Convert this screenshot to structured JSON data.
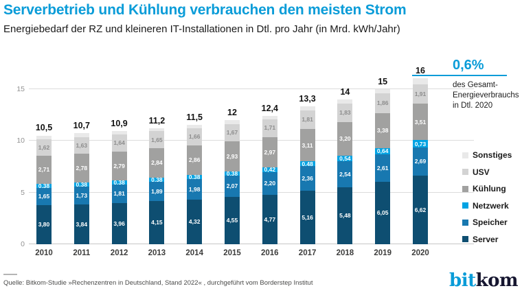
{
  "header": {
    "title": "Serverbetrieb und Kühlung verbrauchen den meisten Strom",
    "subtitle": "Energiebedarf der RZ und kleineren IT-Installationen in Dtl. pro Jahr (in Mrd. kWh/Jahr)"
  },
  "annotation": {
    "value": "0,6%",
    "description": "des Gesamt-\nEnergieverbrauchs\nin Dtl. 2020"
  },
  "colors": {
    "accent_blue": "#0a9cd8",
    "grid": "#dcdcdc",
    "axis": "#c6c6c5"
  },
  "chart_data": {
    "type": "bar",
    "stacked": true,
    "title": "Energiebedarf der RZ und kleineren IT-Installationen in Dtl. pro Jahr",
    "unit": "Mrd. kWh/Jahr",
    "categories": [
      "2010",
      "2011",
      "2012",
      "2013",
      "2014",
      "2015",
      "2016",
      "2017",
      "2018",
      "2019",
      "2020"
    ],
    "totals": [
      "10,5",
      "10,7",
      "10,9",
      "11,2",
      "11,5",
      "12",
      "12,4",
      "13,3",
      "14",
      "15",
      "16"
    ],
    "y_ticks": [
      0,
      5,
      10,
      15
    ],
    "ylim": [
      0,
      17.25
    ],
    "grid": true,
    "legend_position": "right",
    "series": [
      {
        "key": "server",
        "name": "Server",
        "color": "#0e4e71",
        "label_color": "#ffffff",
        "labels_shown": true,
        "values": [
          3.8,
          3.84,
          3.96,
          4.15,
          4.32,
          4.55,
          4.77,
          5.16,
          5.48,
          6.05,
          6.62
        ]
      },
      {
        "key": "speicher",
        "name": "Speicher",
        "color": "#1878b0",
        "label_color": "#ffffff",
        "labels_shown": true,
        "values": [
          1.65,
          1.73,
          1.81,
          1.89,
          1.98,
          2.07,
          2.2,
          2.36,
          2.54,
          2.61,
          2.69
        ]
      },
      {
        "key": "netzwerk",
        "name": "Netzwerk",
        "color": "#00a3e3",
        "label_color": "#ffffff",
        "labels_shown": true,
        "values": [
          0.38,
          0.38,
          0.38,
          0.38,
          0.38,
          0.38,
          0.42,
          0.48,
          0.54,
          0.64,
          0.73
        ]
      },
      {
        "key": "kuehlung",
        "name": "Kühlung",
        "color": "#a1a1a0",
        "label_color": "#ffffff",
        "labels_shown": true,
        "values": [
          2.71,
          2.78,
          2.79,
          2.84,
          2.86,
          2.93,
          2.97,
          3.11,
          3.2,
          3.38,
          3.51
        ]
      },
      {
        "key": "usv",
        "name": "USV",
        "color": "#d3d3d3",
        "label_color": "#8c8c8c",
        "labels_shown": true,
        "values": [
          1.62,
          1.63,
          1.64,
          1.65,
          1.66,
          1.67,
          1.71,
          1.81,
          1.83,
          1.86,
          1.91
        ]
      },
      {
        "key": "sonstiges",
        "name": "Sonstiges",
        "color": "#e9e9e9",
        "label_color": "#8c8c8c",
        "labels_shown": false,
        "values": [
          0.34,
          0.34,
          0.32,
          0.29,
          0.3,
          0.4,
          0.33,
          0.38,
          0.41,
          0.46,
          0.54
        ]
      }
    ]
  },
  "footer": {
    "source": "Quelle: Bitkom-Studie »Rechenzentren in Deutschland, Stand 2022« , durchgeführt vom Borderstep Institut",
    "logo_part1": "bit",
    "logo_part2": "kom"
  }
}
